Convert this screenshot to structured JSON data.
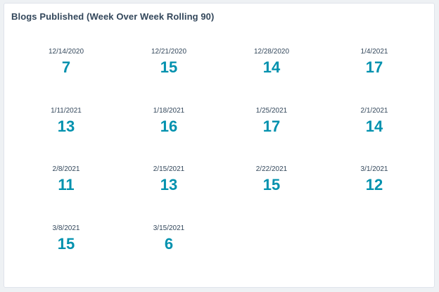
{
  "report": {
    "title": "Blogs Published (Week Over Week Rolling 90)",
    "accent_color": "#0091ae",
    "text_color": "#33475b",
    "rows": [
      [
        {
          "date": "12/14/2020",
          "count": "7"
        },
        {
          "date": "12/21/2020",
          "count": "15"
        },
        {
          "date": "12/28/2020",
          "count": "14"
        },
        {
          "date": "1/4/2021",
          "count": "17"
        }
      ],
      [
        {
          "date": "1/11/2021",
          "count": "13"
        },
        {
          "date": "1/18/2021",
          "count": "16"
        },
        {
          "date": "1/25/2021",
          "count": "17"
        },
        {
          "date": "2/1/2021",
          "count": "14"
        }
      ],
      [
        {
          "date": "2/8/2021",
          "count": "11"
        },
        {
          "date": "2/15/2021",
          "count": "13"
        },
        {
          "date": "2/22/2021",
          "count": "15"
        },
        {
          "date": "3/1/2021",
          "count": "12"
        }
      ],
      [
        {
          "date": "3/8/2021",
          "count": "15"
        },
        {
          "date": "3/15/2021",
          "count": "6"
        }
      ]
    ]
  }
}
